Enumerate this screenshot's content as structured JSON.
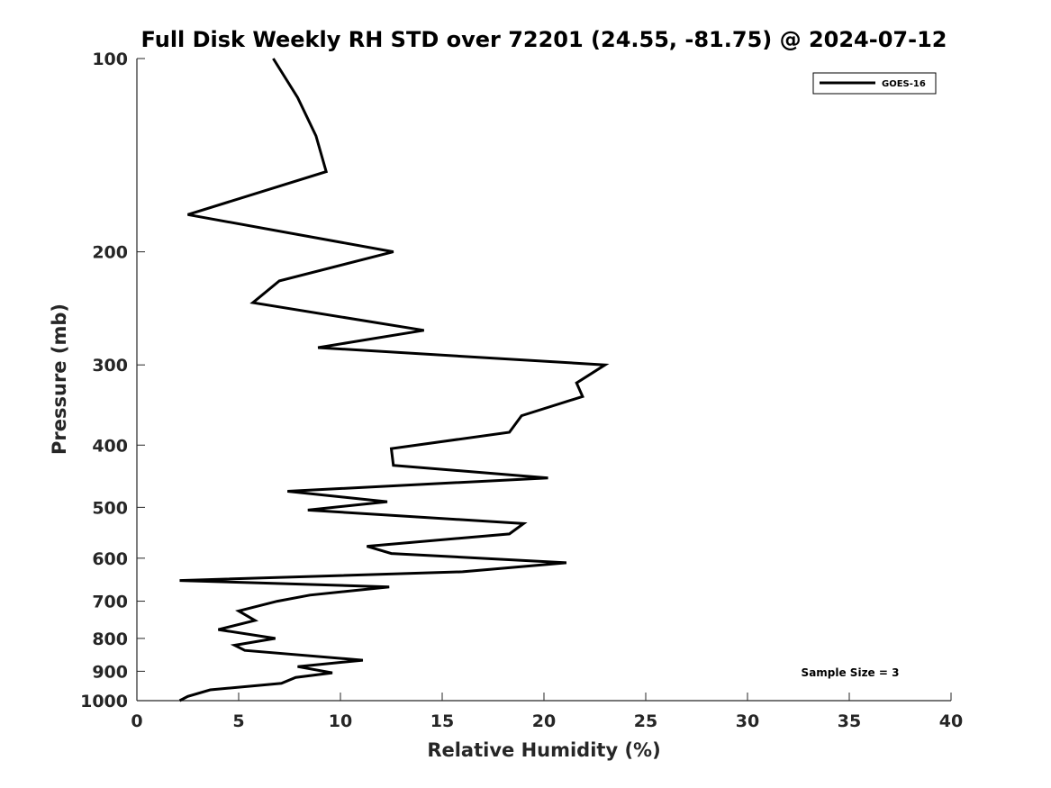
{
  "chart_data": {
    "type": "line",
    "title": "Full Disk Weekly RH STD over 72201 (24.55, -81.75) @ 2024-07-12",
    "xlabel": "Relative Humidity (%)",
    "ylabel": "Pressure (mb)",
    "xlim": [
      0,
      40
    ],
    "ylim": [
      100,
      1000
    ],
    "yscale": "log",
    "reversed_y": true,
    "grid": false,
    "xticks": [
      0,
      5,
      10,
      15,
      20,
      25,
      30,
      35,
      40
    ],
    "yticks": [
      100,
      200,
      300,
      400,
      500,
      600,
      700,
      800,
      900,
      1000
    ],
    "legend": {
      "position": "top-right",
      "entries": [
        "GOES-16"
      ]
    },
    "annotation": "Sample Size = 3",
    "series": [
      {
        "name": "GOES-16",
        "color": "#000000",
        "x": [
          6.7,
          7.9,
          8.8,
          9.3,
          2.5,
          12.6,
          7.0,
          5.7,
          14.1,
          8.9,
          23.0,
          21.6,
          21.9,
          18.9,
          18.3,
          12.5,
          12.6,
          20.2,
          7.4,
          12.3,
          8.4,
          19.0,
          18.3,
          11.3,
          12.5,
          21.1,
          16.0,
          2.1,
          12.4,
          8.5,
          6.9,
          5.0,
          5.8,
          4.0,
          6.8,
          4.8,
          5.3,
          11.1,
          7.9,
          9.6,
          7.8,
          7.1,
          3.6,
          2.5,
          2.1
        ],
        "pressure": [
          100,
          115,
          132,
          150,
          175,
          200,
          222,
          240,
          265,
          282,
          300,
          320,
          336,
          360,
          382,
          405,
          430,
          450,
          472,
          490,
          505,
          530,
          550,
          575,
          590,
          610,
          630,
          650,
          665,
          685,
          700,
          725,
          750,
          775,
          800,
          820,
          835,
          865,
          885,
          905,
          920,
          940,
          962,
          985,
          1000
        ]
      }
    ]
  }
}
